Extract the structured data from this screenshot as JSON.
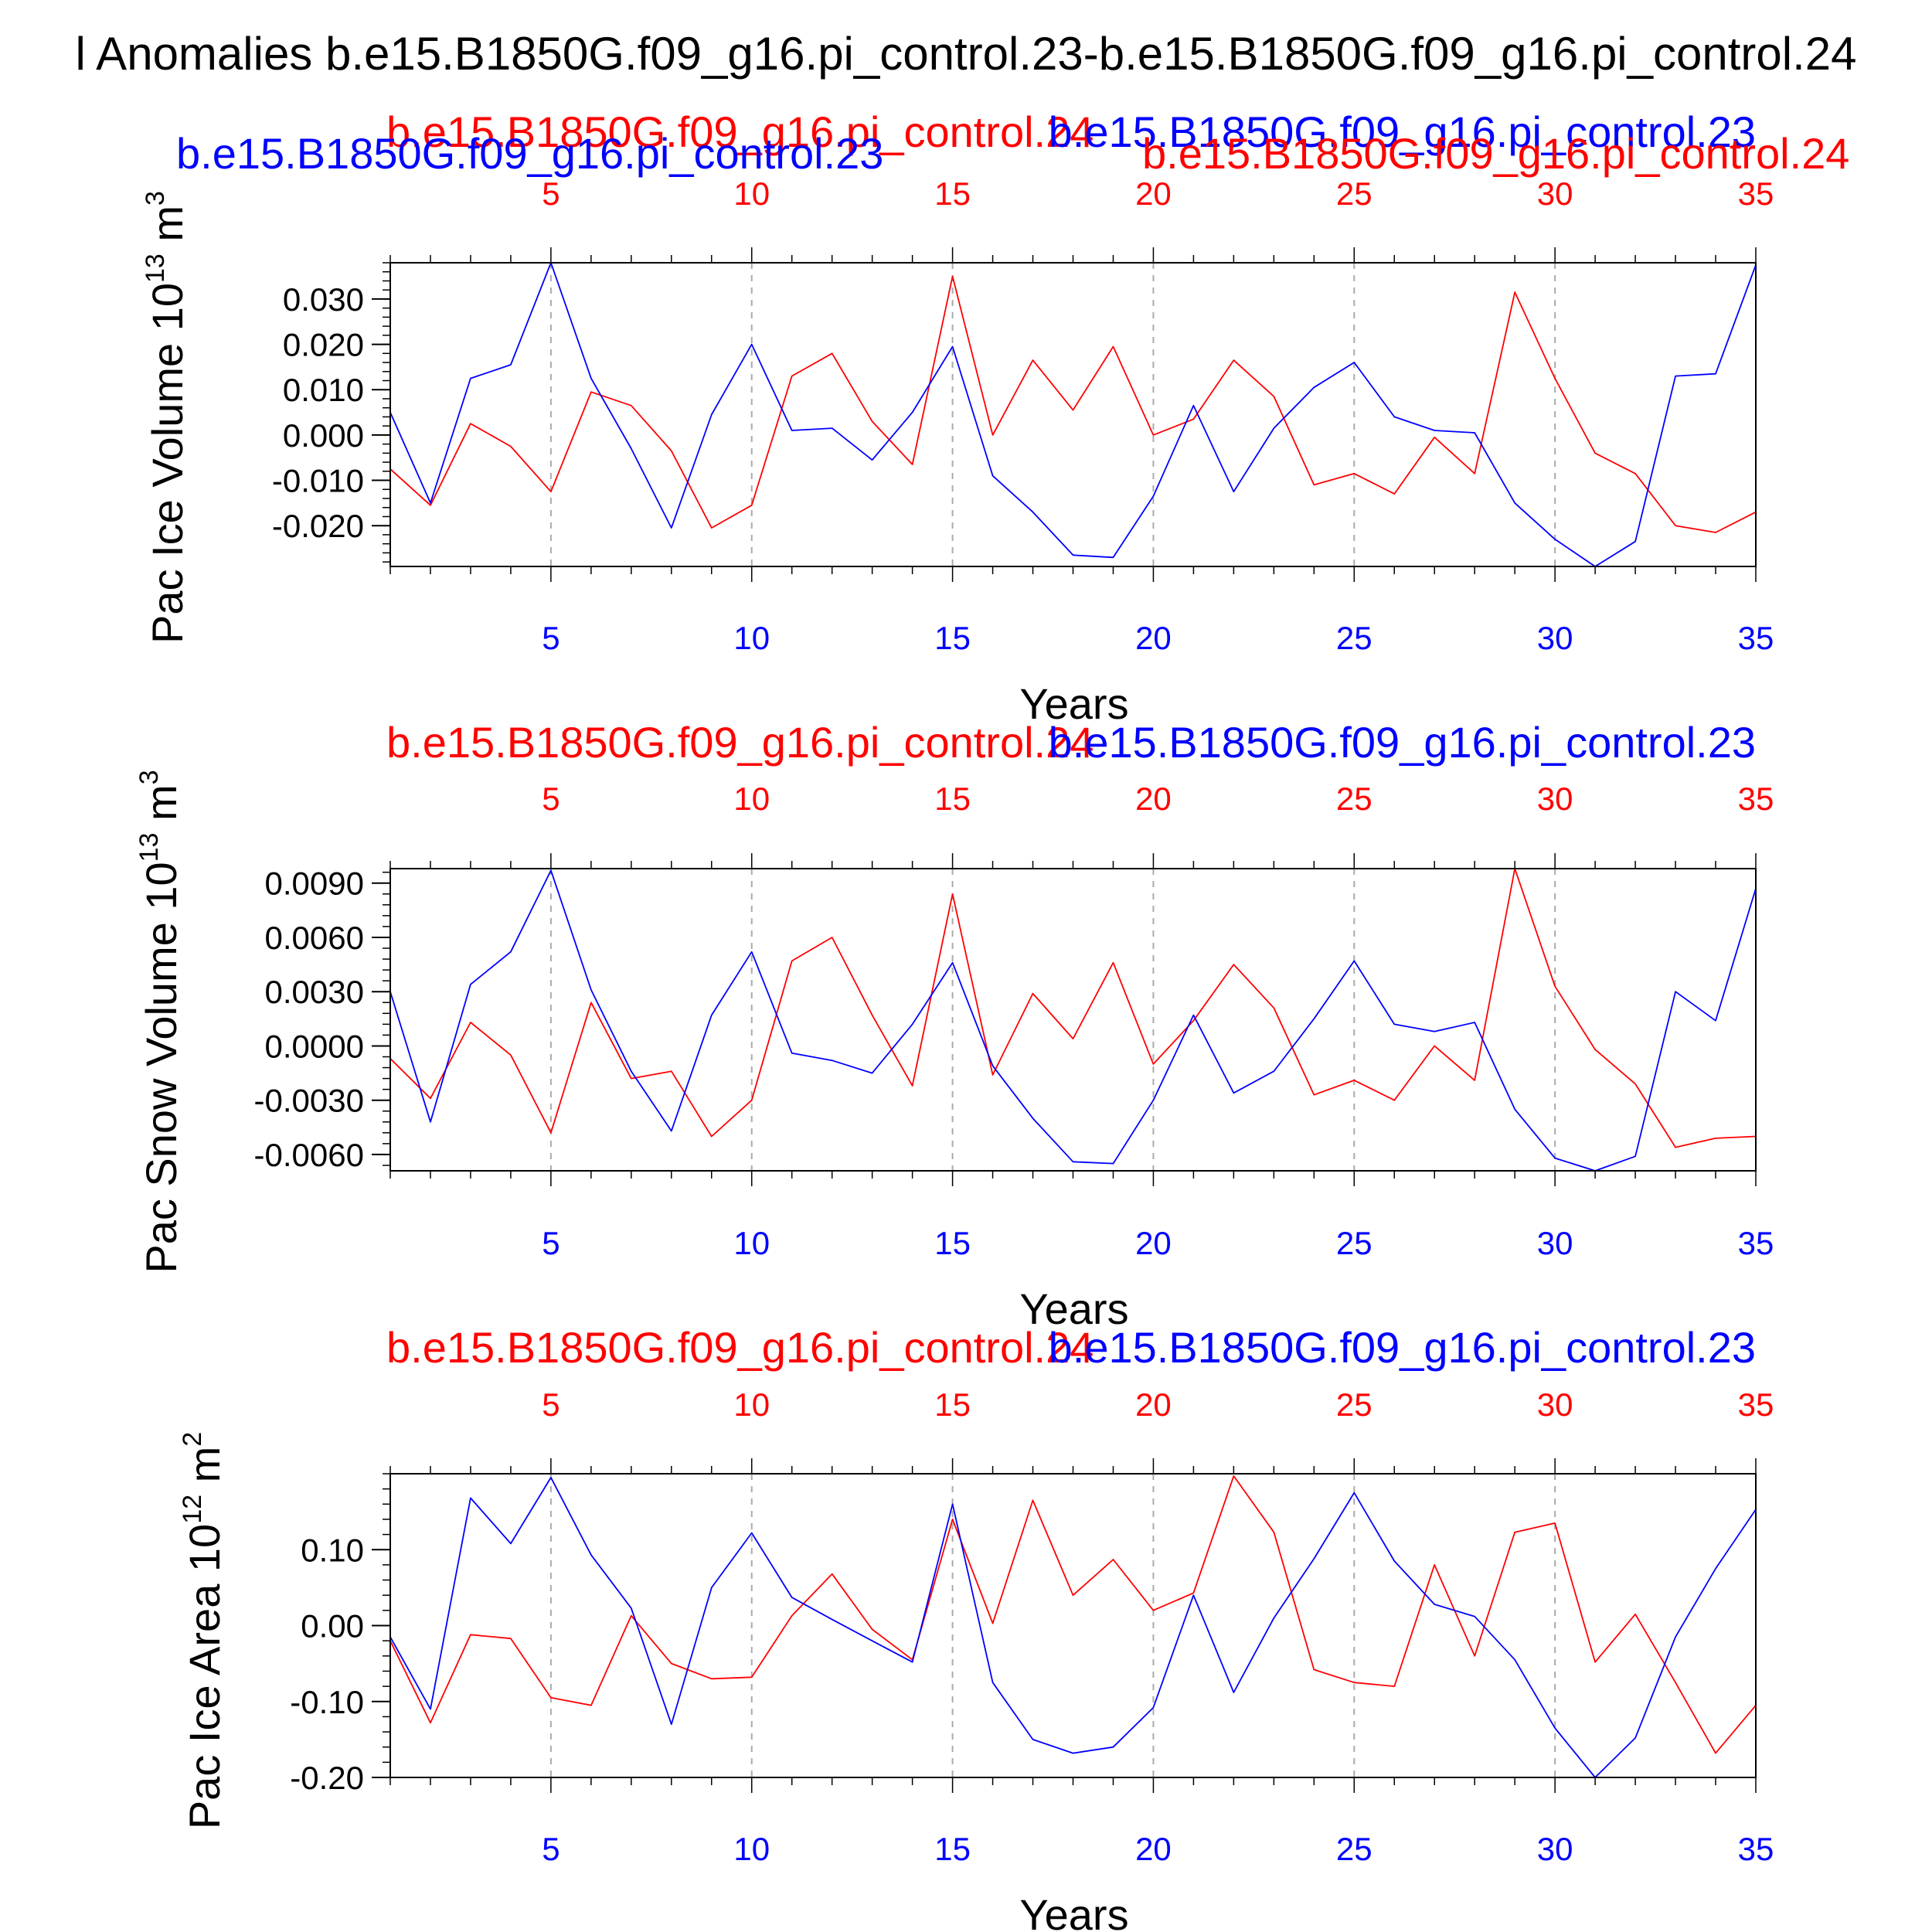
{
  "figure": {
    "title": "l Anomalies b.e15.B1850G.f09_g16.pi_control.23-b.e15.B1850G.f09_g16.pi_control.24",
    "colors": {
      "run23": "#0000ff",
      "run24": "#ff0000",
      "axis": "#000000",
      "grid": "#aaaaaa"
    }
  },
  "chart_data": [
    {
      "type": "line",
      "ylabel": "Pac Ice Volume 10",
      "ylabel_exp": "13",
      "ylabel_unit": " m",
      "ylabel_unit_exp": "3",
      "xlabel": "Years",
      "ylim": [
        -0.029,
        0.038
      ],
      "yticks": [
        -0.02,
        -0.01,
        0.0,
        0.01,
        0.02,
        0.03
      ],
      "yticklabels": [
        "-0.020",
        "-0.010",
        "0.000",
        "0.010",
        "0.020",
        "0.030"
      ],
      "xlim": [
        1,
        35
      ],
      "xticks": [
        5,
        10,
        15,
        20,
        25,
        30,
        35
      ],
      "xticklabels": [
        "5",
        "10",
        "15",
        "20",
        "25",
        "30",
        "35"
      ],
      "top_labels": [
        "b.e15.B1850G.f09_g16.pi_control.24",
        "b.e15.B1850G.f09_g16.pi_control.23"
      ],
      "extra_labels": [
        "b.e15.B1850G.f09_g16.pi_control.23",
        "b.e15.B1850G.f09_g16.pi_control.24"
      ],
      "x": [
        1,
        2,
        3,
        4,
        5,
        6,
        7,
        8,
        9,
        10,
        11,
        12,
        13,
        14,
        15,
        16,
        17,
        18,
        19,
        20,
        21,
        22,
        23,
        24,
        25,
        26,
        27,
        28,
        29,
        30,
        31,
        32,
        33,
        34,
        35
      ],
      "series": [
        {
          "name": "b.e15.B1850G.f09_g16.pi_control.23",
          "color": "#0000ff",
          "values": [
            0.005,
            -0.015,
            0.0125,
            0.0155,
            0.038,
            0.0125,
            -0.003,
            -0.0205,
            0.0045,
            0.02,
            0.001,
            0.0015,
            -0.0055,
            0.005,
            0.0195,
            -0.009,
            -0.017,
            -0.0265,
            -0.027,
            -0.0135,
            0.0065,
            -0.0125,
            0.0015,
            0.0105,
            0.016,
            0.004,
            0.001,
            0.0005,
            -0.015,
            -0.023,
            -0.029,
            -0.0235,
            0.013,
            0.0135,
            0.0375
          ]
        },
        {
          "name": "b.e15.B1850G.f09_g16.pi_control.24",
          "color": "#ff0000",
          "values": [
            -0.0075,
            -0.0155,
            0.0025,
            -0.0025,
            -0.0125,
            0.0095,
            0.0065,
            -0.0035,
            -0.0205,
            -0.0155,
            0.013,
            0.018,
            0.003,
            -0.0065,
            0.035,
            0.0,
            0.0165,
            0.0055,
            0.0195,
            0.0,
            0.0035,
            0.0165,
            0.0085,
            -0.011,
            -0.0085,
            -0.013,
            -0.0005,
            -0.0085,
            0.0315,
            0.0125,
            -0.004,
            -0.0085,
            -0.02,
            -0.0215,
            -0.017
          ]
        }
      ]
    },
    {
      "type": "line",
      "ylabel": "Pac Snow Volume 10",
      "ylabel_exp": "13",
      "ylabel_unit": " m",
      "ylabel_unit_exp": "3",
      "xlabel": "Years",
      "ylim": [
        -0.0069,
        0.0098
      ],
      "yticks": [
        -0.006,
        -0.003,
        0.0,
        0.003,
        0.006,
        0.009
      ],
      "yticklabels": [
        "-0.0060",
        "-0.0030",
        "0.0000",
        "0.0030",
        "0.0060",
        "0.0090"
      ],
      "xlim": [
        1,
        35
      ],
      "xticks": [
        5,
        10,
        15,
        20,
        25,
        30,
        35
      ],
      "xticklabels": [
        "5",
        "10",
        "15",
        "20",
        "25",
        "30",
        "35"
      ],
      "top_labels": [
        "b.e15.B1850G.f09_g16.pi_control.24",
        "b.e15.B1850G.f09_g16.pi_control.23"
      ],
      "x": [
        1,
        2,
        3,
        4,
        5,
        6,
        7,
        8,
        9,
        10,
        11,
        12,
        13,
        14,
        15,
        16,
        17,
        18,
        19,
        20,
        21,
        22,
        23,
        24,
        25,
        26,
        27,
        28,
        29,
        30,
        31,
        32,
        33,
        34,
        35
      ],
      "series": [
        {
          "name": "b.e15.B1850G.f09_g16.pi_control.23",
          "color": "#0000ff",
          "values": [
            0.003,
            -0.0042,
            0.0034,
            0.0052,
            0.0097,
            0.0031,
            -0.0014,
            -0.0047,
            0.0017,
            0.0052,
            -0.0004,
            -0.0008,
            -0.0015,
            0.0012,
            0.0046,
            -0.0011,
            -0.004,
            -0.0064,
            -0.0065,
            -0.003,
            0.0017,
            -0.0026,
            -0.0014,
            0.0015,
            0.0047,
            0.0012,
            0.0008,
            0.0013,
            -0.0035,
            -0.0062,
            -0.0069,
            -0.0061,
            0.003,
            0.0014,
            0.0087
          ]
        },
        {
          "name": "b.e15.B1850G.f09_g16.pi_control.24",
          "color": "#ff0000",
          "values": [
            -0.0007,
            -0.0029,
            0.0013,
            -0.0005,
            -0.0048,
            0.0024,
            -0.0018,
            -0.0014,
            -0.005,
            -0.003,
            0.0047,
            0.006,
            0.0017,
            -0.0022,
            0.0084,
            -0.0016,
            0.0029,
            0.0004,
            0.0046,
            -0.001,
            0.0014,
            0.0045,
            0.0021,
            -0.0027,
            -0.0019,
            -0.003,
            0.0,
            -0.0019,
            0.0098,
            0.0033,
            -0.0002,
            -0.0021,
            -0.0056,
            -0.0051,
            -0.005
          ]
        }
      ]
    },
    {
      "type": "line",
      "ylabel": "Pac Ice Area 10",
      "ylabel_exp": "12",
      "ylabel_unit": " m",
      "ylabel_unit_exp": "2",
      "xlabel": "Years",
      "ylim": [
        -0.2,
        0.2
      ],
      "yticks": [
        -0.2,
        -0.1,
        0.0,
        0.1
      ],
      "yticklabels": [
        "-0.20",
        "-0.10",
        "0.00",
        "0.10"
      ],
      "xlim": [
        1,
        35
      ],
      "xticks": [
        5,
        10,
        15,
        20,
        25,
        30,
        35
      ],
      "xticklabels": [
        "5",
        "10",
        "15",
        "20",
        "25",
        "30",
        "35"
      ],
      "top_labels": [
        "b.e15.B1850G.f09_g16.pi_control.24",
        "b.e15.B1850G.f09_g16.pi_control.23"
      ],
      "x": [
        1,
        2,
        3,
        4,
        5,
        6,
        7,
        8,
        9,
        10,
        11,
        12,
        13,
        14,
        15,
        16,
        17,
        18,
        19,
        20,
        21,
        22,
        23,
        24,
        25,
        26,
        27,
        28,
        29,
        30,
        31,
        32,
        33,
        34,
        35
      ],
      "series": [
        {
          "name": "b.e15.B1850G.f09_g16.pi_control.23",
          "color": "#0000ff",
          "values": [
            -0.015,
            -0.11,
            0.168,
            0.108,
            0.195,
            0.093,
            0.023,
            -0.13,
            0.05,
            0.122,
            0.037,
            0.008,
            -0.02,
            -0.048,
            0.16,
            -0.075,
            -0.15,
            -0.168,
            -0.16,
            -0.108,
            0.04,
            -0.088,
            0.01,
            0.088,
            0.175,
            0.085,
            0.028,
            0.012,
            -0.045,
            -0.135,
            -0.2,
            -0.148,
            -0.015,
            0.075,
            0.153
          ]
        },
        {
          "name": "b.e15.B1850G.f09_g16.pi_control.24",
          "color": "#ff0000",
          "values": [
            -0.02,
            -0.128,
            -0.012,
            -0.017,
            -0.095,
            -0.105,
            0.013,
            -0.05,
            -0.07,
            -0.068,
            0.013,
            0.068,
            -0.005,
            -0.045,
            0.14,
            0.003,
            0.165,
            0.04,
            0.087,
            0.02,
            0.043,
            0.197,
            0.123,
            -0.058,
            -0.075,
            -0.08,
            0.08,
            -0.04,
            0.123,
            0.135,
            -0.048,
            0.015,
            -0.075,
            -0.168,
            -0.105
          ]
        }
      ]
    }
  ]
}
